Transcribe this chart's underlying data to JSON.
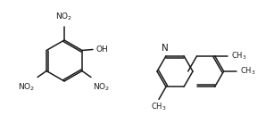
{
  "bg_color": "#ffffff",
  "line_color": "#1a1a1a",
  "text_color": "#1a1a1a",
  "figsize": [
    3.07,
    1.48
  ],
  "dpi": 100,
  "lw": 1.1,
  "fs": 6.5
}
